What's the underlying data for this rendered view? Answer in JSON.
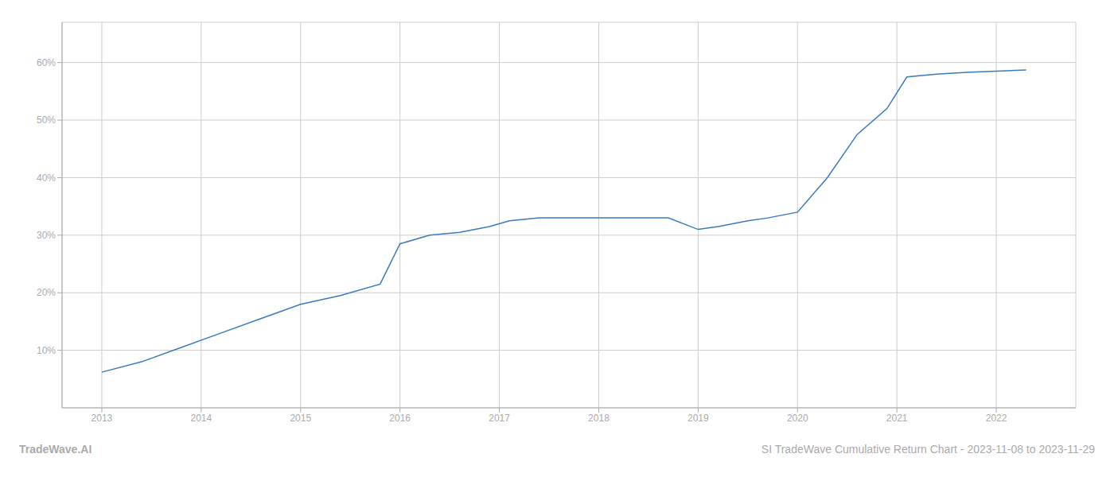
{
  "chart_data": {
    "type": "line",
    "x": [
      2013.0,
      2013.4,
      2013.8,
      2014.2,
      2014.6,
      2015.0,
      2015.4,
      2015.8,
      2016.0,
      2016.3,
      2016.6,
      2016.9,
      2017.1,
      2017.4,
      2017.7,
      2018.0,
      2018.3,
      2018.7,
      2019.0,
      2019.2,
      2019.5,
      2019.7,
      2020.0,
      2020.3,
      2020.6,
      2020.9,
      2021.1,
      2021.4,
      2021.7,
      2022.0,
      2022.3
    ],
    "values": [
      6.2,
      8.0,
      10.5,
      13.0,
      15.5,
      18.0,
      19.5,
      21.5,
      28.5,
      30.0,
      30.5,
      31.5,
      32.5,
      33.0,
      33.0,
      33.0,
      33.0,
      33.0,
      31.0,
      31.5,
      32.5,
      33.0,
      34.0,
      40.0,
      47.5,
      52.0,
      57.5,
      58.0,
      58.3,
      58.5,
      58.7
    ],
    "color": "#3a7abf",
    "xlim": [
      2012.6,
      2022.8
    ],
    "xticks": [
      2013,
      2014,
      2015,
      2016,
      2017,
      2018,
      2019,
      2020,
      2021,
      2022
    ],
    "ylim": [
      0,
      67
    ],
    "yticks": [
      {
        "value": 10,
        "label": "10%"
      },
      {
        "value": 20,
        "label": "20%"
      },
      {
        "value": 30,
        "label": "30%"
      },
      {
        "value": 40,
        "label": "40%"
      },
      {
        "value": 50,
        "label": "50%"
      },
      {
        "value": 60,
        "label": "60%"
      }
    ],
    "grid": true,
    "annotations": [
      "TradeWave.AI",
      "SI TradeWave Cumulative Return Chart - 2023-11-08 to 2023-11-29"
    ]
  }
}
